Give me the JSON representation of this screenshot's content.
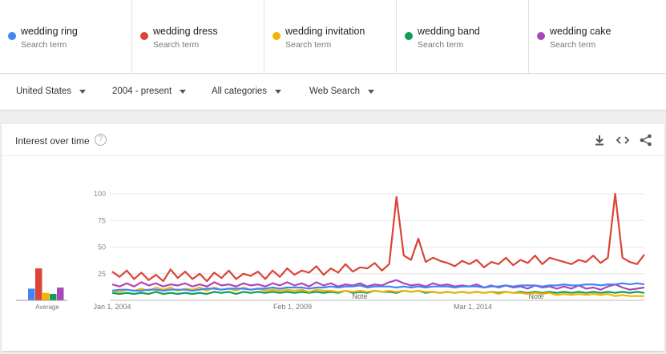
{
  "terms": [
    {
      "name": "wedding ring",
      "sub": "Search term",
      "color": "#4285f4"
    },
    {
      "name": "wedding dress",
      "sub": "Search term",
      "color": "#db4437"
    },
    {
      "name": "wedding invitation",
      "sub": "Search term",
      "color": "#f4b400"
    },
    {
      "name": "wedding band",
      "sub": "Search term",
      "color": "#0f9d58"
    },
    {
      "name": "wedding cake",
      "sub": "Search term",
      "color": "#ab47bc"
    }
  ],
  "filters": {
    "region": "United States",
    "time": "2004 - present",
    "category": "All categories",
    "search_type": "Web Search"
  },
  "card": {
    "title": "Interest over time",
    "help": "?",
    "icons": [
      "download-icon",
      "embed-icon",
      "share-icon"
    ]
  },
  "chart_data": {
    "type": "line",
    "ylim": [
      0,
      100
    ],
    "yticks": [
      25,
      50,
      75,
      100
    ],
    "xticks": [
      "Jan 1, 2004",
      "Feb 1, 2009",
      "Mar 1, 2014"
    ],
    "average_label": "Average",
    "notes": [
      "Note",
      "Note"
    ],
    "average": [
      11,
      30,
      7,
      6,
      12
    ],
    "series": [
      {
        "name": "wedding ring",
        "color": "#4285f4",
        "values": [
          9,
          10,
          10,
          9,
          9,
          10,
          10,
          9,
          10,
          10,
          10,
          9,
          10,
          11,
          11,
          10,
          11,
          11,
          11,
          10,
          11,
          11,
          12,
          11,
          12,
          12,
          12,
          11,
          12,
          12,
          13,
          12,
          13,
          13,
          14,
          12,
          13,
          13,
          13,
          12,
          13,
          12,
          13,
          12,
          13,
          13,
          13,
          12,
          13,
          13,
          13,
          12,
          13,
          13,
          14,
          13,
          14,
          14,
          14,
          13,
          14,
          14,
          15,
          14,
          14,
          15,
          15,
          14,
          15,
          15,
          16,
          15,
          16,
          15
        ]
      },
      {
        "name": "wedding dress",
        "color": "#db4437",
        "values": [
          27,
          22,
          28,
          20,
          26,
          19,
          24,
          18,
          29,
          21,
          27,
          20,
          25,
          18,
          26,
          21,
          28,
          20,
          25,
          23,
          27,
          20,
          28,
          22,
          30,
          24,
          28,
          26,
          32,
          24,
          30,
          26,
          34,
          27,
          31,
          30,
          35,
          28,
          34,
          97,
          42,
          38,
          58,
          36,
          40,
          37,
          35,
          32,
          37,
          34,
          38,
          31,
          36,
          34,
          40,
          33,
          38,
          35,
          42,
          34,
          40,
          38,
          36,
          34,
          38,
          36,
          42,
          35,
          40,
          100,
          40,
          36,
          34,
          43
        ]
      },
      {
        "name": "wedding invitation",
        "color": "#f4b400",
        "values": [
          9,
          8,
          10,
          9,
          11,
          9,
          12,
          10,
          12,
          9,
          11,
          10,
          12,
          9,
          12,
          10,
          11,
          9,
          12,
          10,
          11,
          9,
          10,
          9,
          10,
          9,
          10,
          8,
          10,
          9,
          9,
          8,
          9,
          8,
          9,
          8,
          9,
          8,
          9,
          8,
          9,
          8,
          9,
          8,
          8,
          7,
          8,
          7,
          8,
          7,
          8,
          7,
          8,
          6,
          8,
          7,
          7,
          6,
          7,
          6,
          7,
          5,
          6,
          5,
          6,
          5,
          6,
          5,
          6,
          4,
          5,
          4,
          4,
          4
        ]
      },
      {
        "name": "wedding band",
        "color": "#0f9d58",
        "values": [
          7,
          6,
          7,
          6,
          7,
          6,
          8,
          6,
          7,
          6,
          7,
          6,
          7,
          6,
          8,
          7,
          8,
          6,
          8,
          7,
          8,
          7,
          8,
          7,
          8,
          7,
          8,
          7,
          8,
          7,
          8,
          7,
          9,
          7,
          8,
          7,
          9,
          8,
          8,
          7,
          9,
          8,
          9,
          7,
          8,
          7,
          8,
          7,
          8,
          7,
          8,
          7,
          8,
          7,
          8,
          7,
          8,
          7,
          8,
          7,
          8,
          7,
          8,
          7,
          8,
          7,
          8,
          7,
          8,
          7,
          8,
          7,
          8,
          7
        ]
      },
      {
        "name": "wedding cake",
        "color": "#ab47bc",
        "values": [
          15,
          13,
          16,
          13,
          17,
          14,
          16,
          13,
          15,
          14,
          16,
          13,
          15,
          13,
          17,
          14,
          15,
          13,
          16,
          14,
          15,
          13,
          16,
          14,
          17,
          14,
          16,
          13,
          17,
          14,
          16,
          13,
          15,
          14,
          16,
          13,
          15,
          14,
          17,
          19,
          16,
          14,
          15,
          13,
          16,
          14,
          15,
          13,
          14,
          13,
          15,
          12,
          14,
          12,
          14,
          12,
          13,
          11,
          14,
          12,
          13,
          11,
          13,
          11,
          14,
          11,
          12,
          10,
          13,
          15,
          12,
          10,
          11,
          12
        ]
      }
    ]
  }
}
